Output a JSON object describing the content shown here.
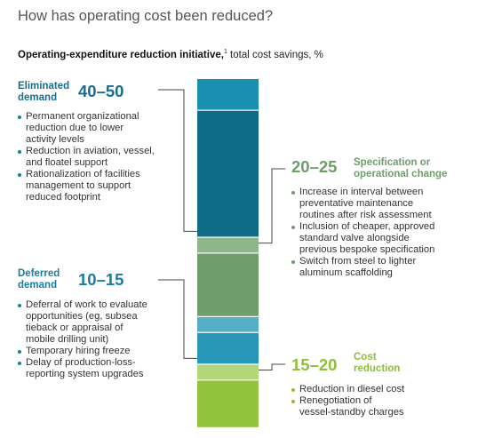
{
  "header": {
    "title": "How has operating cost been reduced?",
    "subtitle_bold": "Operating-expenditure reduction initiative,",
    "subtitle_sup": "1",
    "subtitle_rest": " total cost savings, %"
  },
  "chart_data": {
    "type": "bar",
    "stacked": true,
    "title": "How has operating cost been reduced?",
    "subtitle": "Operating-expenditure reduction initiative, total cost savings, %",
    "categories": [
      "Eliminated demand",
      "Specification or operational change",
      "Deferred demand",
      "Cost reduction"
    ],
    "series": [
      {
        "name": "Eliminated demand",
        "range_label": "40–50",
        "low": 40,
        "high": 50,
        "color": "#0f6c87",
        "light_color": "#1b8fb0"
      },
      {
        "name": "Specification or operational change",
        "range_label": "20–25",
        "low": 20,
        "high": 25,
        "color": "#6f9e6a",
        "light_color": "#8fb58a"
      },
      {
        "name": "Deferred demand",
        "range_label": "10–15",
        "low": 10,
        "high": 15,
        "color": "#2997b8",
        "light_color": "#54aec5"
      },
      {
        "name": "Cost reduction",
        "range_label": "15–20",
        "low": 15,
        "high": 20,
        "color": "#93c43e",
        "light_color": "#b3d67a"
      }
    ]
  },
  "categories": [
    {
      "label_line1": "Eliminated",
      "label_line2": "demand",
      "range": "40–50",
      "color": "#1a6d8e",
      "dot": "#1b7da3",
      "bullets": [
        [
          "Permanent organizational",
          "reduction due to lower",
          "activity levels"
        ],
        [
          "Reduction in aviation, vessel,",
          "and floatel support"
        ],
        [
          "Rationalization of facilities",
          "management to support",
          "reduced footprint"
        ]
      ]
    },
    {
      "label_line1": "Specification or",
      "label_line2": "operational change",
      "range": "20–25",
      "color": "#6f9e6a",
      "dot": "#6f9e6a",
      "bullets": [
        [
          "Increase in interval between",
          "preventative maintenance",
          "routines after risk assessment"
        ],
        [
          "Inclusion of cheaper, approved",
          "standard valve alongside",
          "previous bespoke specification"
        ],
        [
          "Switch from steel to lighter",
          "aluminum scaffolding"
        ]
      ]
    },
    {
      "label_line1": "Deferred",
      "label_line2": "demand",
      "range": "10–15",
      "color": "#1a7da3",
      "dot": "#1b7da3",
      "bullets": [
        [
          "Deferral of work to evaluate",
          "opportunities (eg, subsea",
          "tieback or appraisal of",
          "mobile drilling unit)"
        ],
        [
          "Temporary hiring freeze"
        ],
        [
          "Delay of production-loss-",
          "reporting system upgrades"
        ]
      ]
    },
    {
      "label_line1": "Cost",
      "label_line2": "reduction",
      "range": "15–20",
      "color": "#8dbf3a",
      "dot": "#8dbf3a",
      "bullets": [
        [
          "Reduction in diesel cost"
        ],
        [
          "Renegotiation of",
          "vessel-standby charges"
        ]
      ]
    }
  ]
}
